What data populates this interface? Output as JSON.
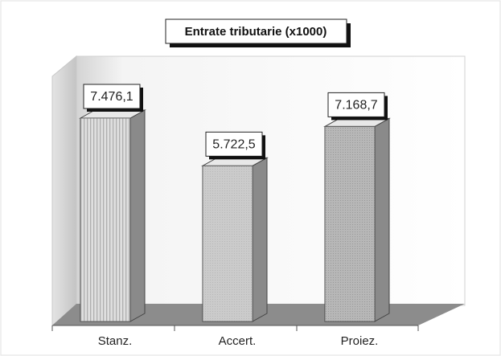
{
  "chart_data": {
    "type": "bar3d",
    "title": "Entrate tributarie (x1000)",
    "categories": [
      "Stanz.",
      "Accert.",
      "Proiez."
    ],
    "values": [
      7476.1,
      5722.5,
      7168.7
    ],
    "value_labels": [
      "7.476,1",
      "5.722,5",
      "7.168,7"
    ],
    "colors": [
      "#d8d8d8",
      "#c8c8c8",
      "#b4b4b4"
    ]
  }
}
